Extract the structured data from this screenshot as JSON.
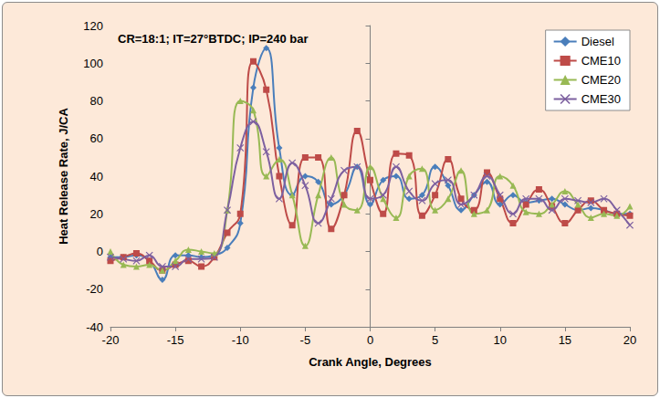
{
  "chart_data": {
    "type": "line",
    "annotation": "CR=18:1; IT=27°BTDC; IP=240 bar",
    "x_label": "Crank Angle, Degrees",
    "y_label": "Heat Release Rate, J/CA",
    "x": [
      -20,
      -19,
      -18,
      -17,
      -16,
      -15,
      -14,
      -13,
      -12,
      -11,
      -10,
      -9,
      -8,
      -7,
      -6,
      -5,
      -4,
      -3,
      -2,
      -1,
      0,
      1,
      2,
      3,
      4,
      5,
      6,
      7,
      8,
      9,
      10,
      11,
      12,
      13,
      14,
      15,
      16,
      17,
      18,
      19,
      20
    ],
    "series": [
      {
        "name": "Diesel",
        "color": "#4a7ebb",
        "marker": "diamond",
        "values": [
          -3,
          -3,
          -2,
          -5,
          -15,
          -2,
          -2,
          -3,
          -2,
          2,
          15,
          87,
          108,
          55,
          30,
          40,
          37,
          25,
          30,
          45,
          25,
          38,
          40,
          28,
          30,
          45,
          35,
          22,
          30,
          37,
          25,
          30,
          26,
          27,
          28,
          25,
          22,
          23,
          22,
          20,
          20
        ]
      },
      {
        "name": "CME10",
        "color": "#be4b48",
        "marker": "square",
        "values": [
          -5,
          -3,
          -1,
          -5,
          -10,
          -7,
          -5,
          -8,
          -3,
          10,
          20,
          101,
          86,
          40,
          14,
          50,
          50,
          12,
          30,
          64,
          38,
          20,
          52,
          51,
          19,
          30,
          49,
          28,
          22,
          42,
          28,
          15,
          25,
          33,
          24,
          15,
          22,
          27,
          22,
          20,
          19
        ]
      },
      {
        "name": "CME20",
        "color": "#98b954",
        "marker": "triangle",
        "values": [
          0,
          -7,
          -8,
          -7,
          -10,
          -5,
          1,
          0,
          -1,
          22,
          80,
          75,
          40,
          49,
          30,
          3,
          30,
          50,
          25,
          22,
          45,
          28,
          18,
          40,
          44,
          22,
          28,
          43,
          20,
          22,
          40,
          35,
          21,
          20,
          25,
          32,
          25,
          18,
          20,
          19,
          24
        ]
      },
      {
        "name": "CME30",
        "color": "#7d60a0",
        "marker": "x",
        "values": [
          -3,
          -4,
          -5,
          -2,
          -8,
          -8,
          -4,
          -4,
          -3,
          22,
          55,
          69,
          53,
          28,
          47,
          35,
          15,
          28,
          43,
          45,
          28,
          30,
          45,
          32,
          27,
          36,
          38,
          25,
          30,
          40,
          30,
          20,
          28,
          28,
          22,
          28,
          27,
          26,
          28,
          22,
          14
        ]
      }
    ],
    "xlim": [
      -20,
      20
    ],
    "xticks": [
      -20,
      -15,
      -10,
      -5,
      0,
      5,
      10,
      15,
      20
    ],
    "ylim": [
      -40,
      120
    ],
    "yticks": [
      -40,
      -20,
      0,
      20,
      40,
      60,
      80,
      100,
      120
    ],
    "grid": false,
    "legend": "upper right"
  }
}
